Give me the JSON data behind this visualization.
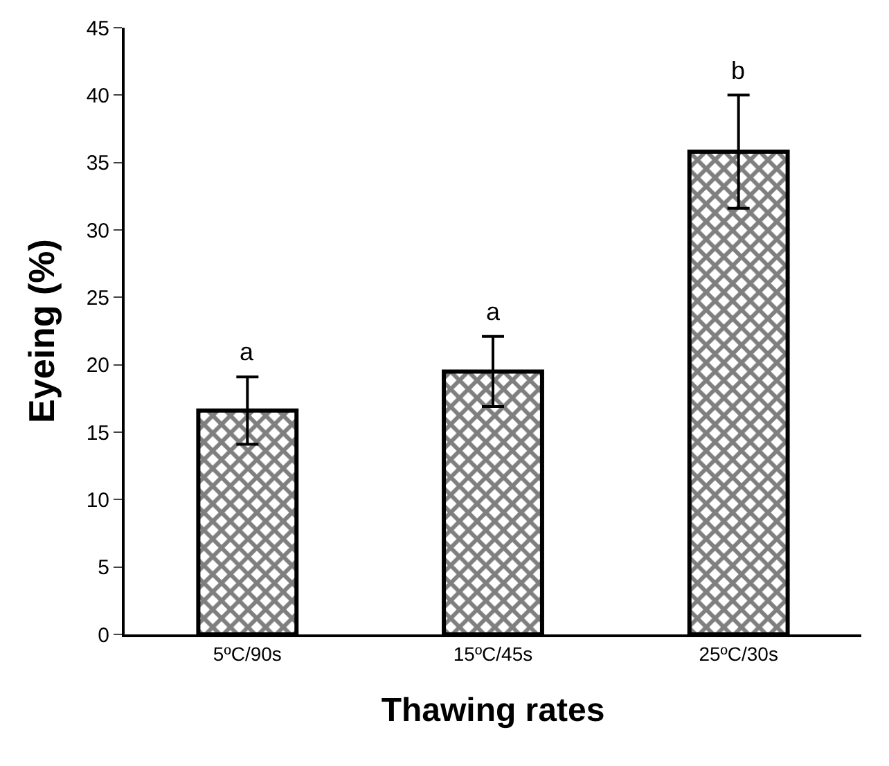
{
  "chart_data": {
    "type": "bar",
    "xlabel": "Thawing rates",
    "ylabel": "Eyeing (%)",
    "categories": [
      "5ºC/90s",
      "15ºC/45s",
      "25ºC/30s"
    ],
    "values": [
      16.6,
      19.5,
      35.8
    ],
    "errors": [
      2.5,
      2.6,
      4.2
    ],
    "color": "#000000",
    "ylim": [
      0,
      45
    ],
    "yticks": [
      0,
      5,
      10,
      15,
      20,
      25,
      30,
      35,
      40,
      45
    ],
    "annotations": [
      {
        "text": "a",
        "x": "5ºC/90s",
        "y": 19.1
      },
      {
        "text": "a",
        "x": "15ºC/45s",
        "y": 22.1
      },
      {
        "text": "b",
        "x": "25ºC/30s",
        "y": 40.0
      }
    ]
  }
}
